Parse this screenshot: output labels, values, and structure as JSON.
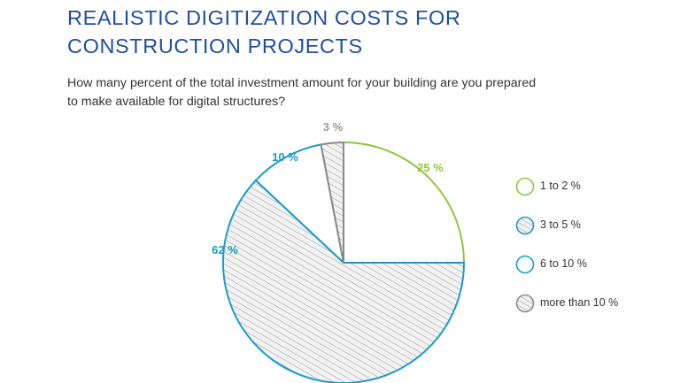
{
  "title_line1": "REALISTIC DIGITIZATION COSTS FOR",
  "title_line2": "CONSTRUCTION PROJECTS",
  "subtitle_line1": "How many percent of the total investment amount for your building are you prepared",
  "subtitle_line2": "to make available for digital structures?",
  "chart_data": {
    "type": "pie",
    "start_angle": "12 o'clock",
    "direction": "clockwise",
    "slices": [
      {
        "label": "1 to 2 %",
        "value": 25,
        "data_label": "25 %",
        "color": "#8ec63f",
        "fill": "white",
        "text_color": "#8ec63f"
      },
      {
        "label": "3 to 5 %",
        "value": 62,
        "data_label": "62 %",
        "color": "#1a9cc7",
        "fill": "hatched",
        "text_color": "#1a9cc7"
      },
      {
        "label": "6 to 10 %",
        "value": 10,
        "data_label": "10 %",
        "color": "#1a9cc7",
        "fill": "white",
        "text_color": "#1a9cc7"
      },
      {
        "label": "more than 10 %",
        "value": 3,
        "data_label": "3 %",
        "color": "#8a8a8a",
        "fill": "hatched",
        "text_color": "#9a9a9a"
      }
    ],
    "legend_placement": "right"
  }
}
